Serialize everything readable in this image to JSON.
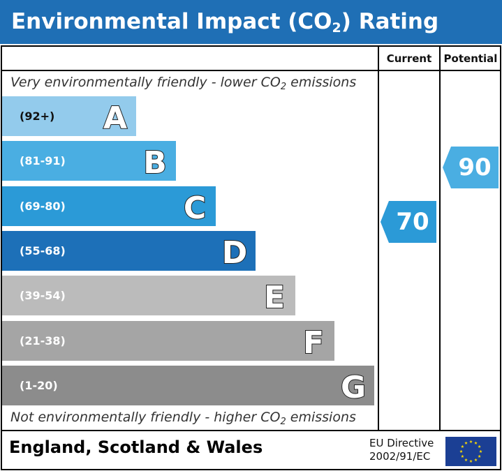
{
  "title": {
    "text": "Environmental Impact (CO",
    "sub": "2",
    "suffix": ") Rating"
  },
  "columns": {
    "current": "Current",
    "potential": "Potential"
  },
  "top_note": {
    "text": "Very environmentally friendly - lower CO",
    "sub": "2",
    "suffix": " emissions"
  },
  "bottom_note": {
    "text": "Not environmentally friendly - higher CO",
    "sub": "2",
    "suffix": " emissions"
  },
  "chart_data": {
    "type": "bar",
    "categories": [
      "A",
      "B",
      "C",
      "D",
      "E",
      "F",
      "G"
    ],
    "ranges": [
      "(92+)",
      "(81-91)",
      "(69-80)",
      "(55-68)",
      "(39-54)",
      "(21-38)",
      "(1-20)"
    ],
    "band_colors": [
      "#93cbec",
      "#4aaee2",
      "#2b9ad7",
      "#1d70b8",
      "#bbbbbb",
      "#a5a5a5",
      "#8c8c8c"
    ],
    "range_text_colors": [
      "#111111",
      "#ffffff",
      "#ffffff",
      "#ffffff",
      "#ffffff",
      "#ffffff",
      "#ffffff"
    ],
    "current": {
      "value": 70,
      "band": "C",
      "color": "#2b9ad7"
    },
    "potential": {
      "value": 90,
      "band": "B",
      "color": "#4aaee2"
    }
  },
  "footer": {
    "region": "England, Scotland & Wales",
    "directive_line1": "EU Directive",
    "directive_line2": "2002/91/EC"
  },
  "icons": {
    "eu_flag": "eu-flag-icon"
  },
  "colors": {
    "title_bg": "#1f6fb5",
    "eu_blue": "#1b3f94",
    "eu_star": "#ffdd00"
  }
}
